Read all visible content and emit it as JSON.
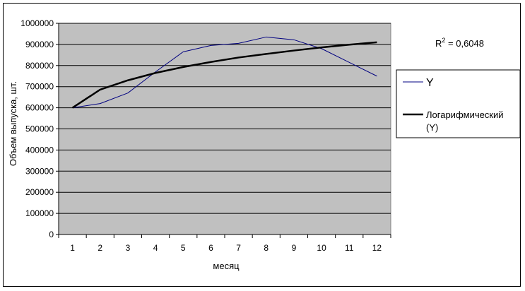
{
  "chart_data": {
    "type": "line",
    "title": "",
    "xlabel": "месяц",
    "ylabel": "Объем выпуска, шт.",
    "categories": [
      "1",
      "2",
      "3",
      "4",
      "5",
      "6",
      "7",
      "8",
      "9",
      "10",
      "11",
      "12"
    ],
    "ylim": [
      0,
      1000000
    ],
    "yticks": [
      "0",
      "100000",
      "200000",
      "300000",
      "400000",
      "500000",
      "600000",
      "700000",
      "800000",
      "900000",
      "1000000"
    ],
    "grid": true,
    "plot_background": "#c0c0c0",
    "legend_position": "right",
    "series": [
      {
        "name": "Y",
        "color": "#000080",
        "style": "thin",
        "values": [
          600000,
          620000,
          670000,
          770000,
          865000,
          895000,
          905000,
          935000,
          922000,
          880000,
          815000,
          750000
        ]
      },
      {
        "name": "Логарифмический (Y)",
        "color": "#000000",
        "style": "thick",
        "trendline": "logarithmic",
        "values": [
          600000,
          686000,
          730000,
          765000,
          793000,
          817000,
          838000,
          855000,
          871000,
          886000,
          899000,
          910000
        ]
      }
    ],
    "annotation": {
      "r2_prefix": "R",
      "r2_exp": "2",
      "r2_value": " = 0,6048"
    }
  }
}
